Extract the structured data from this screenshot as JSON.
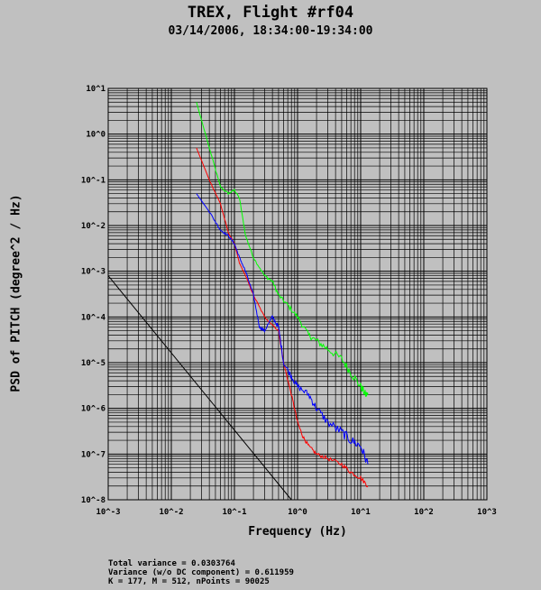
{
  "chart_data": {
    "type": "line",
    "title": "TREX, Flight #rf04",
    "subtitle": "03/14/2006, 18:34:00-19:34:00",
    "xlabel": "Frequency (Hz)",
    "ylabel": "PSD of PITCH (degree^2 / Hz)",
    "x_scale": "log",
    "y_scale": "log",
    "xlim": [
      0.001,
      1000
    ],
    "ylim": [
      1e-08,
      10
    ],
    "grid": true,
    "x_tick_labels": [
      "10^-3",
      "10^-2",
      "10^-1",
      "10^0",
      "10^1",
      "10^2",
      "10^3"
    ],
    "y_tick_labels": [
      "10^1",
      "10^0",
      "10^-1",
      "10^-2",
      "10^-3",
      "10^-4",
      "10^-5",
      "10^-6",
      "10^-7",
      "10^-8"
    ],
    "series": [
      {
        "name": "green",
        "color": "#00ff00",
        "noise": 0.15,
        "x": [
          0.025,
          0.04,
          0.06,
          0.08,
          0.1,
          0.12,
          0.15,
          0.2,
          0.3,
          0.4,
          0.5,
          0.7,
          1.0,
          1.5,
          2,
          3,
          5,
          7,
          10,
          12,
          13
        ],
        "y": [
          5.0,
          0.5,
          0.07,
          0.05,
          0.06,
          0.04,
          0.006,
          0.002,
          0.0008,
          0.0006,
          0.0003,
          0.00018,
          0.0001,
          4e-05,
          3e-05,
          2e-05,
          1.2e-05,
          6e-06,
          3e-06,
          2e-06,
          2e-06
        ]
      },
      {
        "name": "red",
        "color": "#ff0000",
        "noise": 0.08,
        "x": [
          0.025,
          0.04,
          0.06,
          0.08,
          0.1,
          0.12,
          0.15,
          0.2,
          0.3,
          0.5,
          0.6,
          0.8,
          1.0,
          1.2,
          1.5,
          2,
          3,
          5,
          7,
          10,
          13
        ],
        "y": [
          0.5,
          0.1,
          0.03,
          0.007,
          0.004,
          0.0015,
          0.0008,
          0.0003,
          0.0001,
          5e-05,
          1e-05,
          2e-06,
          5e-07,
          2.5e-07,
          1.5e-07,
          1e-07,
          8e-08,
          6e-08,
          4e-08,
          3e-08,
          2e-08
        ]
      },
      {
        "name": "blue",
        "color": "#0000ff",
        "noise": 0.18,
        "x": [
          0.025,
          0.04,
          0.06,
          0.08,
          0.1,
          0.12,
          0.15,
          0.2,
          0.25,
          0.3,
          0.4,
          0.5,
          0.6,
          0.8,
          1.0,
          1.5,
          2,
          3,
          5,
          7,
          10,
          13
        ],
        "y": [
          0.05,
          0.02,
          0.008,
          0.006,
          0.004,
          0.002,
          0.001,
          0.0003,
          6e-05,
          5e-05,
          0.0001,
          6e-05,
          1e-05,
          5e-06,
          3e-06,
          2e-06,
          1e-06,
          5e-07,
          3e-07,
          2e-07,
          1.5e-07,
          6e-08
        ]
      },
      {
        "name": "black",
        "color": "#000000",
        "noise": 0,
        "x": [
          0.001,
          0.8
        ],
        "y": [
          0.0008,
          1e-08
        ]
      }
    ]
  },
  "stats": {
    "total_variance": "Total variance = 0.0303764",
    "variance_wo_dc": "Variance (w/o DC component) = 0.611959",
    "params": "K = 177, M = 512, nPoints = 90025"
  }
}
